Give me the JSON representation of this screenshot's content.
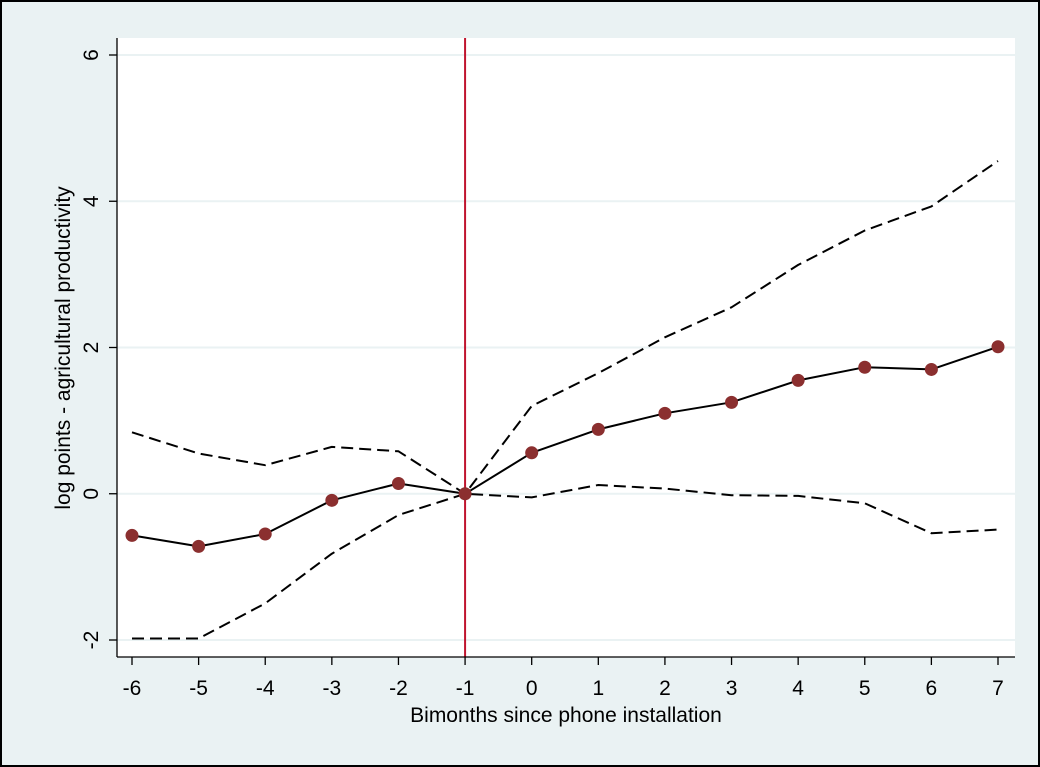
{
  "chart_data": {
    "type": "line",
    "title": "",
    "xlabel": "Bimonths since phone installation",
    "ylabel": "log points - agricultural productivity",
    "xlim": [
      -6,
      7
    ],
    "ylim": [
      -2,
      6
    ],
    "x_ticks": [
      -6,
      -5,
      -4,
      -3,
      -2,
      -1,
      0,
      1,
      2,
      3,
      4,
      5,
      6,
      7
    ],
    "y_ticks": [
      -2,
      0,
      2,
      4,
      6
    ],
    "grid": "horizontal",
    "legend": "none",
    "reference_line": {
      "x": -1,
      "color": "#c0142e"
    },
    "series": [
      {
        "role": "estimate",
        "style": "solid-with-markers",
        "x": [
          -6,
          -5,
          -4,
          -3,
          -2,
          -1,
          0,
          1,
          2,
          3,
          4,
          5,
          6,
          7
        ],
        "values": [
          -0.57,
          -0.72,
          -0.55,
          -0.09,
          0.14,
          0.0,
          0.56,
          0.88,
          1.1,
          1.25,
          1.55,
          1.73,
          1.7,
          2.01
        ]
      },
      {
        "role": "upper-ci",
        "style": "dashed",
        "x": [
          -6,
          -5,
          -4,
          -3,
          -2,
          -1,
          0,
          1,
          2,
          3,
          4,
          5,
          6,
          7
        ],
        "values": [
          0.84,
          0.55,
          0.39,
          0.64,
          0.58,
          0.0,
          1.2,
          1.65,
          2.14,
          2.55,
          3.13,
          3.6,
          3.93,
          4.55
        ]
      },
      {
        "role": "lower-ci",
        "style": "dashed",
        "x": [
          -6,
          -5,
          -4,
          -3,
          -2,
          -1,
          0,
          1,
          2,
          3,
          4,
          5,
          6,
          7
        ],
        "values": [
          -1.98,
          -1.98,
          -1.5,
          -0.82,
          -0.29,
          0.0,
          -0.05,
          0.12,
          0.07,
          -0.02,
          -0.03,
          -0.13,
          -0.54,
          -0.49
        ]
      }
    ],
    "colors": {
      "frame_background": "#eaf2f3",
      "plot_background": "#ffffff",
      "gridline": "#eaf2f3",
      "line": "#000000",
      "marker": "#8b2f2f",
      "reference_line": "#c0142e"
    }
  }
}
